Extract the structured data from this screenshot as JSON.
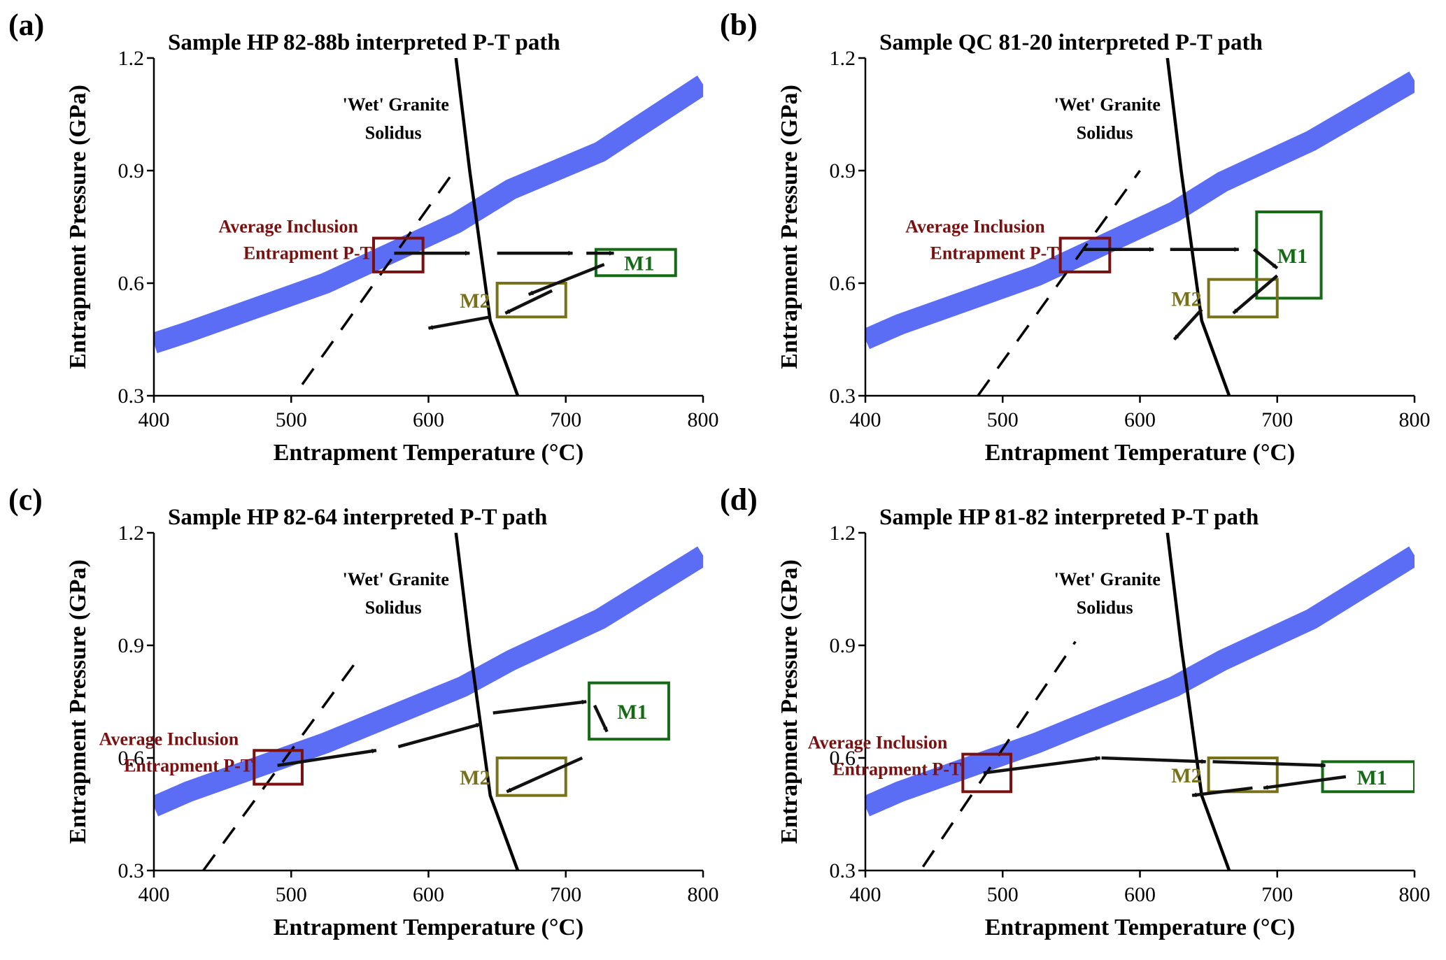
{
  "chart_data": [
    {
      "panel": "(a)",
      "type": "line",
      "title": "Sample HP 82-88b interpreted P-T path",
      "xlabel": "Entrapment Temperature (°C)",
      "ylabel": "Entrapment Pressure (GPa)",
      "xlim": [
        400,
        800
      ],
      "ylim": [
        0.3,
        1.2
      ],
      "xticks": [
        "400",
        "500",
        "600",
        "700",
        "800"
      ],
      "yticks": [
        "0.3",
        "0.6",
        "0.9",
        "1.2"
      ],
      "band": {
        "color": "#5b6cf5",
        "points": [
          [
            400,
            0.44
          ],
          [
            425,
            0.47
          ],
          [
            525,
            0.6
          ],
          [
            620,
            0.76
          ],
          [
            660,
            0.85
          ],
          [
            725,
            0.95
          ],
          [
            800,
            1.13
          ]
        ]
      },
      "solidus": {
        "label_line1": "'Wet' Granite",
        "label_line2": "Solidus",
        "points": [
          [
            620,
            1.2
          ],
          [
            630,
            0.9
          ],
          [
            645,
            0.5
          ],
          [
            665,
            0.3
          ]
        ]
      },
      "dashed": {
        "points": [
          [
            508,
            0.33
          ],
          [
            617,
            0.89
          ]
        ]
      },
      "boxes": [
        {
          "id": "inclusion",
          "label": "",
          "color": "#7a1010",
          "x": [
            560,
            596
          ],
          "y": [
            0.63,
            0.72
          ]
        },
        {
          "id": "M1",
          "label": "M1",
          "color": "#156b15",
          "x": [
            722,
            780
          ],
          "y": [
            0.62,
            0.69
          ]
        },
        {
          "id": "M2",
          "label": "M2",
          "color": "#77721a",
          "x": [
            650,
            700
          ],
          "y": [
            0.51,
            0.6
          ]
        }
      ],
      "inclusion_label_line1": "Average Inclusion",
      "inclusion_label_line2": "Entrapment P-T",
      "arrows": [
        {
          "from": [
            575,
            0.68
          ],
          "to": [
            630,
            0.68
          ]
        },
        {
          "from": [
            650,
            0.68
          ],
          "to": [
            705,
            0.68
          ]
        },
        {
          "from": [
            715,
            0.68
          ],
          "to": [
            735,
            0.68
          ]
        },
        {
          "from": [
            728,
            0.65
          ],
          "to": [
            673,
            0.57
          ]
        },
        {
          "from": [
            690,
            0.58
          ],
          "to": [
            656,
            0.52
          ]
        },
        {
          "from": [
            645,
            0.51
          ],
          "to": [
            600,
            0.48
          ]
        }
      ]
    },
    {
      "panel": "(b)",
      "type": "line",
      "title": "Sample QC 81-20 interpreted P-T path",
      "xlabel": "Entrapment Temperature (°C)",
      "ylabel": "Entrapment Pressure (GPa)",
      "xlim": [
        400,
        800
      ],
      "ylim": [
        0.3,
        1.2
      ],
      "xticks": [
        "400",
        "500",
        "600",
        "700",
        "800"
      ],
      "yticks": [
        "0.3",
        "0.6",
        "0.9",
        "1.2"
      ],
      "band": {
        "color": "#5b6cf5",
        "points": [
          [
            400,
            0.45
          ],
          [
            425,
            0.49
          ],
          [
            525,
            0.62
          ],
          [
            625,
            0.79
          ],
          [
            660,
            0.87
          ],
          [
            725,
            0.98
          ],
          [
            800,
            1.14
          ]
        ]
      },
      "solidus": {
        "label_line1": "'Wet' Granite",
        "label_line2": "Solidus",
        "points": [
          [
            620,
            1.2
          ],
          [
            630,
            0.9
          ],
          [
            645,
            0.5
          ],
          [
            665,
            0.3
          ]
        ]
      },
      "dashed": {
        "points": [
          [
            482,
            0.3
          ],
          [
            600,
            0.9
          ]
        ]
      },
      "boxes": [
        {
          "id": "inclusion",
          "label": "",
          "color": "#7a1010",
          "x": [
            542,
            578
          ],
          "y": [
            0.63,
            0.72
          ]
        },
        {
          "id": "M1",
          "label": "M1",
          "color": "#156b15",
          "x": [
            685,
            732
          ],
          "y": [
            0.56,
            0.79
          ]
        },
        {
          "id": "M2",
          "label": "M2",
          "color": "#77721a",
          "x": [
            650,
            700
          ],
          "y": [
            0.51,
            0.61
          ]
        }
      ],
      "inclusion_label_line1": "Average Inclusion",
      "inclusion_label_line2": "Entrapment P-T",
      "arrows": [
        {
          "from": [
            558,
            0.69
          ],
          "to": [
            610,
            0.69
          ]
        },
        {
          "from": [
            622,
            0.69
          ],
          "to": [
            672,
            0.69
          ]
        },
        {
          "from": [
            683,
            0.69
          ],
          "to": [
            700,
            0.64
          ]
        },
        {
          "from": [
            700,
            0.62
          ],
          "to": [
            668,
            0.52
          ]
        },
        {
          "from": [
            645,
            0.53
          ],
          "to": [
            625,
            0.45
          ]
        }
      ]
    },
    {
      "panel": "(c)",
      "type": "line",
      "title": "Sample HP 82-64 interpreted P-T path",
      "xlabel": "Entrapment Temperature (°C)",
      "ylabel": "Entrapment Pressure (GPa)",
      "xlim": [
        400,
        800
      ],
      "ylim": [
        0.3,
        1.2
      ],
      "xticks": [
        "400",
        "500",
        "600",
        "700",
        "800"
      ],
      "yticks": [
        "0.3",
        "0.6",
        "0.9",
        "1.2"
      ],
      "band": {
        "color": "#5b6cf5",
        "points": [
          [
            400,
            0.47
          ],
          [
            425,
            0.51
          ],
          [
            525,
            0.64
          ],
          [
            625,
            0.79
          ],
          [
            660,
            0.86
          ],
          [
            725,
            0.97
          ],
          [
            800,
            1.14
          ]
        ]
      },
      "solidus": {
        "label_line1": "'Wet' Granite",
        "label_line2": "Solidus",
        "points": [
          [
            620,
            1.2
          ],
          [
            630,
            0.9
          ],
          [
            645,
            0.5
          ],
          [
            665,
            0.3
          ]
        ]
      },
      "dashed": {
        "points": [
          [
            436,
            0.3
          ],
          [
            550,
            0.87
          ]
        ]
      },
      "boxes": [
        {
          "id": "inclusion",
          "label": "",
          "color": "#7a1010",
          "x": [
            473,
            508
          ],
          "y": [
            0.53,
            0.62
          ]
        },
        {
          "id": "M1",
          "label": "M1",
          "color": "#156b15",
          "x": [
            717,
            775
          ],
          "y": [
            0.65,
            0.8
          ]
        },
        {
          "id": "M2",
          "label": "M2",
          "color": "#77721a",
          "x": [
            650,
            700
          ],
          "y": [
            0.5,
            0.6
          ]
        }
      ],
      "inclusion_label_line1": "Average Inclusion",
      "inclusion_label_line2": "Entrapment P-T",
      "arrows": [
        {
          "from": [
            490,
            0.58
          ],
          "to": [
            562,
            0.62
          ]
        },
        {
          "from": [
            578,
            0.63
          ],
          "to": [
            638,
            0.69
          ]
        },
        {
          "from": [
            647,
            0.72
          ],
          "to": [
            715,
            0.75
          ]
        },
        {
          "from": [
            721,
            0.74
          ],
          "to": [
            730,
            0.67
          ]
        },
        {
          "from": [
            712,
            0.6
          ],
          "to": [
            657,
            0.51
          ]
        }
      ]
    },
    {
      "panel": "(d)",
      "type": "line",
      "title": "Sample HP 81-82 interpreted P-T path",
      "xlabel": "Entrapment Temperature (°C)",
      "ylabel": "Entrapment Pressure (GPa)",
      "xlim": [
        400,
        800
      ],
      "ylim": [
        0.3,
        1.2
      ],
      "xticks": [
        "400",
        "500",
        "600",
        "700",
        "800"
      ],
      "yticks": [
        "0.3",
        "0.6",
        "0.9",
        "1.2"
      ],
      "band": {
        "color": "#5b6cf5",
        "points": [
          [
            400,
            0.47
          ],
          [
            425,
            0.51
          ],
          [
            525,
            0.64
          ],
          [
            625,
            0.79
          ],
          [
            660,
            0.86
          ],
          [
            725,
            0.97
          ],
          [
            800,
            1.14
          ]
        ]
      },
      "solidus": {
        "label_line1": "'Wet' Granite",
        "label_line2": "Solidus",
        "points": [
          [
            620,
            1.2
          ],
          [
            630,
            0.9
          ],
          [
            645,
            0.5
          ],
          [
            665,
            0.3
          ]
        ]
      },
      "dashed": {
        "points": [
          [
            442,
            0.31
          ],
          [
            553,
            0.91
          ]
        ]
      },
      "boxes": [
        {
          "id": "inclusion",
          "label": "",
          "color": "#7a1010",
          "x": [
            471,
            506
          ],
          "y": [
            0.51,
            0.61
          ]
        },
        {
          "id": "M1",
          "label": "M1",
          "color": "#156b15",
          "x": [
            733,
            800
          ],
          "y": [
            0.51,
            0.59
          ]
        },
        {
          "id": "M2",
          "label": "M2",
          "color": "#77721a",
          "x": [
            650,
            700
          ],
          "y": [
            0.51,
            0.6
          ]
        }
      ],
      "inclusion_label_line1": "Average Inclusion",
      "inclusion_label_line2": "Entrapment P-T",
      "arrows": [
        {
          "from": [
            486,
            0.56
          ],
          "to": [
            571,
            0.6
          ]
        },
        {
          "from": [
            572,
            0.6
          ],
          "to": [
            648,
            0.59
          ]
        },
        {
          "from": [
            653,
            0.59
          ],
          "to": [
            735,
            0.58
          ]
        },
        {
          "from": [
            750,
            0.55
          ],
          "to": [
            690,
            0.52
          ]
        },
        {
          "from": [
            682,
            0.52
          ],
          "to": [
            638,
            0.5
          ]
        }
      ]
    }
  ]
}
